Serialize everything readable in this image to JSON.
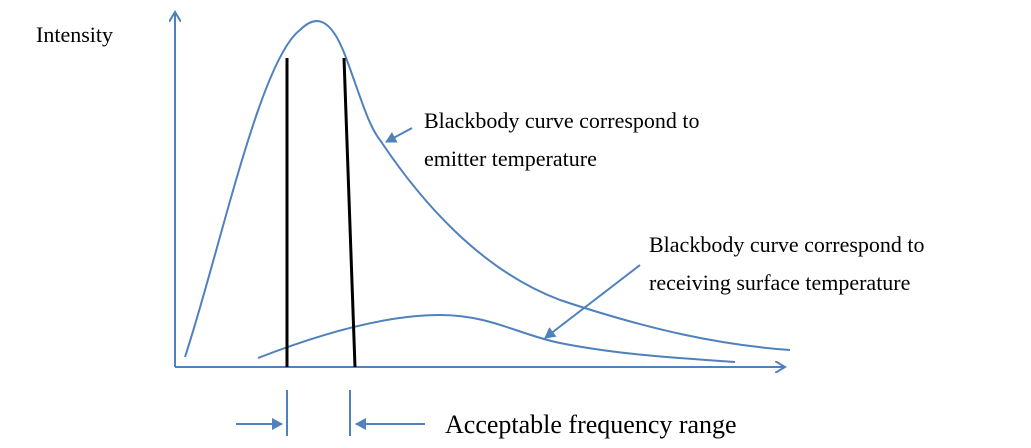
{
  "axis_label": "Intensity",
  "annotations": [
    {
      "lines": [
        "Blackbody curve correspond to",
        "emitter temperature"
      ]
    },
    {
      "lines": [
        "Blackbody curve correspond to",
        "receiving surface temperature"
      ]
    }
  ],
  "range_label": "Acceptable frequency range"
}
